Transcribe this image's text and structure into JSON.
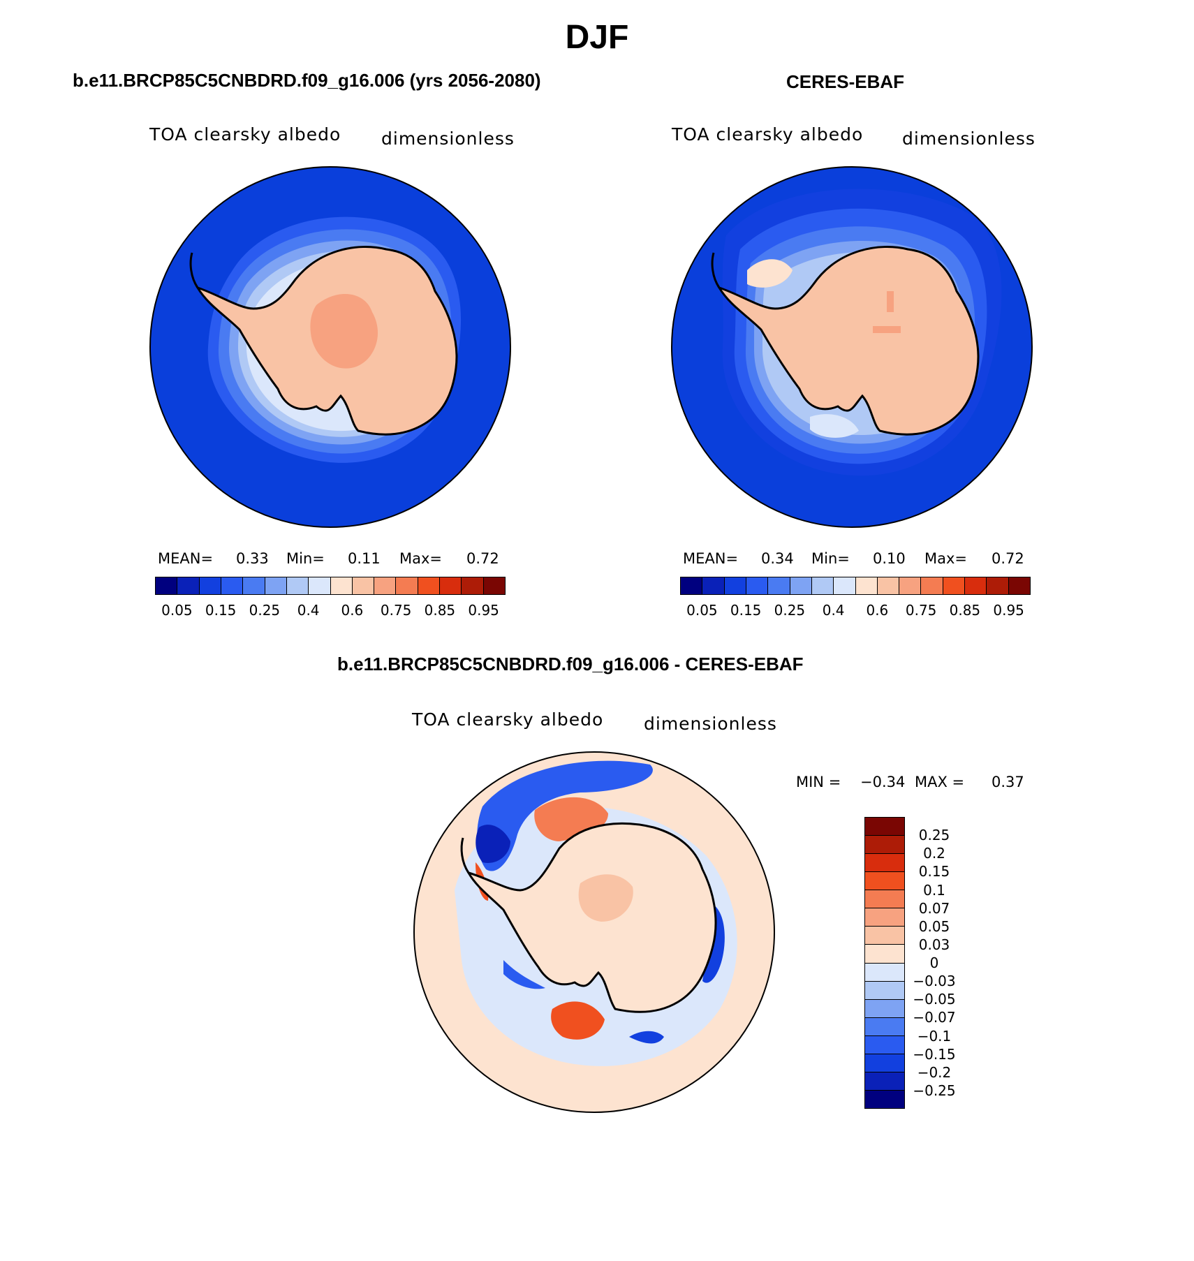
{
  "figure": {
    "season": "DJF"
  },
  "panels": [
    {
      "title": "b.e11.BRCP85C5CNBDRD.f09_g16.006 (yrs 2056-2080)",
      "variable": "TOA clearsky albedo",
      "units": "dimensionless",
      "mean_label": "MEAN=",
      "mean": "0.33",
      "min_label": "Min=",
      "min": "0.11",
      "max_label": "Max=",
      "max": "0.72"
    },
    {
      "title": "CERES-EBAF",
      "variable": "TOA clearsky albedo",
      "units": "dimensionless",
      "mean_label": "MEAN=",
      "mean": "0.34",
      "min_label": "Min=",
      "min": "0.10",
      "max_label": "Max=",
      "max": "0.72"
    },
    {
      "title": "b.e11.BRCP85C5CNBDRD.f09_g16.006 - CERES-EBAF",
      "variable": "TOA clearsky albedo",
      "units": "dimensionless",
      "min_label": "MIN =",
      "min": "−0.34",
      "max_label": "MAX =",
      "max": "0.37"
    }
  ],
  "colorbar_main": {
    "colors": [
      "#00007f",
      "#0a21b8",
      "#1240df",
      "#2a5bf0",
      "#4a7bf2",
      "#7ea3f3",
      "#b0c9f5",
      "#dbe7fb",
      "#fde3d0",
      "#f9c3a5",
      "#f7a280",
      "#f47c52",
      "#f0501f",
      "#d82d0d",
      "#ad1c07",
      "#7a0603"
    ],
    "tick_labels": [
      "0.05",
      "0.15",
      "0.25",
      "0.4",
      "0.6",
      "0.75",
      "0.85",
      "0.95"
    ]
  },
  "colorbar_diff": {
    "colors": [
      "#7a0603",
      "#ad1c07",
      "#d82d0d",
      "#f0501f",
      "#f47c52",
      "#f7a280",
      "#f9c3a5",
      "#fde3d0",
      "#dbe7fb",
      "#b0c9f5",
      "#7ea3f3",
      "#4a7bf2",
      "#2a5bf0",
      "#1240df",
      "#0a21b8",
      "#00007f"
    ],
    "tick_labels": [
      "0.25",
      "0.2",
      "0.15",
      "0.1",
      "0.07",
      "0.05",
      "0.03",
      "0",
      "−0.03",
      "−0.05",
      "−0.07",
      "−0.1",
      "−0.15",
      "−0.2",
      "−0.25"
    ]
  },
  "map_colors": {
    "ocean_model": "#0a3fdb",
    "ocean_ceres": "#0a3fdb",
    "land": "#f9c3a5",
    "land_high": "#f7a280",
    "diff_background": "#fde3d0",
    "diff_light_blue": "#dbe7fb",
    "coast": "#000000"
  }
}
